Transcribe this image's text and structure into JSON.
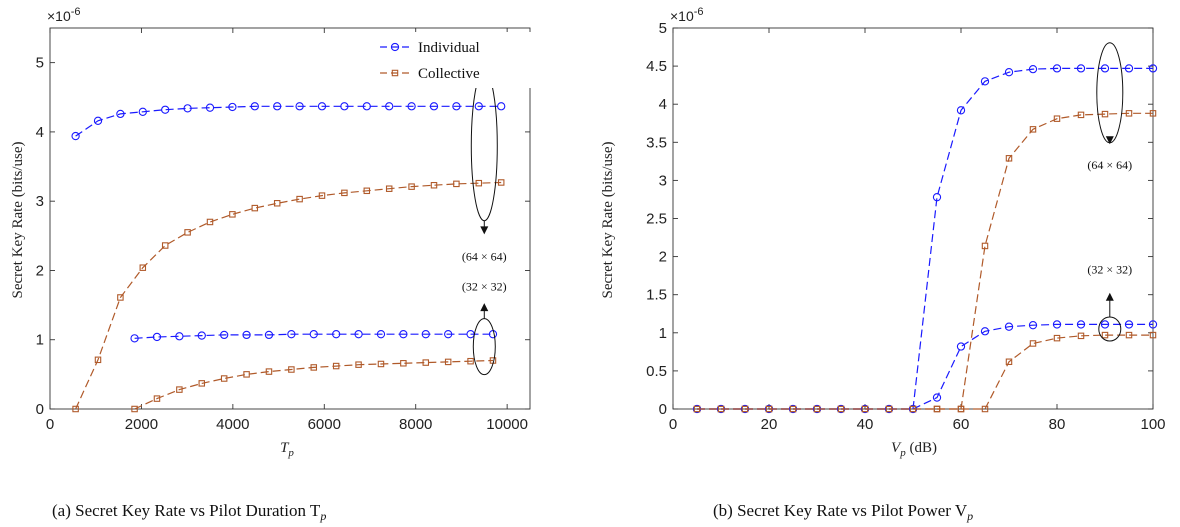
{
  "chart_data": [
    {
      "type": "line",
      "caption": "(a) Secret Key Rate vs Pilot Duration T",
      "caption_sub": "p",
      "xlabel": "T",
      "xlabel_sub": "p",
      "ylabel": "Secret Key Rate (bits/use)",
      "exponent_label": "×10",
      "exponent_power": "-6",
      "xlim": [
        0,
        10500
      ],
      "ylim": [
        0,
        5.5
      ],
      "xticks": [
        0,
        2000,
        4000,
        6000,
        8000,
        10000
      ],
      "yticks": [
        0,
        1,
        2,
        3,
        4,
        5
      ],
      "legend_position": "top-right",
      "legend": [
        {
          "name": "Individual",
          "color": "#1a1aff",
          "marker": "circle"
        },
        {
          "name": "Collective",
          "color": "#b05a2a",
          "marker": "square"
        }
      ],
      "annotations": [
        {
          "text": "(64 × 64)",
          "x": 9500,
          "y": 2.0
        },
        {
          "text": "(32 × 32)",
          "x": 9500,
          "y": 1.65
        }
      ],
      "series": [
        {
          "name": "Individual",
          "group": "64x64",
          "color": "#1a1aff",
          "marker": "circle",
          "x": [
            560,
            1050,
            1540,
            2030,
            2520,
            3010,
            3500,
            3990,
            4480,
            4970,
            5460,
            5950,
            6440,
            6930,
            7420,
            7910,
            8400,
            8890,
            9380,
            9870
          ],
          "y": [
            3.94,
            4.16,
            4.26,
            4.29,
            4.32,
            4.34,
            4.35,
            4.36,
            4.37,
            4.37,
            4.37,
            4.37,
            4.37,
            4.37,
            4.37,
            4.37,
            4.37,
            4.37,
            4.37,
            4.37
          ]
        },
        {
          "name": "Collective",
          "group": "64x64",
          "color": "#b05a2a",
          "marker": "square",
          "x": [
            560,
            1050,
            1540,
            2030,
            2520,
            3010,
            3500,
            3990,
            4480,
            4970,
            5460,
            5950,
            6440,
            6930,
            7420,
            7910,
            8400,
            8890,
            9380,
            9870
          ],
          "y": [
            0.0,
            0.71,
            1.61,
            2.04,
            2.36,
            2.55,
            2.7,
            2.81,
            2.9,
            2.97,
            3.03,
            3.08,
            3.12,
            3.15,
            3.18,
            3.21,
            3.23,
            3.25,
            3.26,
            3.27
          ]
        },
        {
          "name": "Individual",
          "group": "32x32",
          "color": "#1a1aff",
          "marker": "circle",
          "x": [
            1850,
            2340,
            2830,
            3320,
            3810,
            4300,
            4790,
            5280,
            5770,
            6260,
            6750,
            7240,
            7730,
            8220,
            8710,
            9200,
            9690
          ],
          "y": [
            1.02,
            1.04,
            1.05,
            1.06,
            1.07,
            1.07,
            1.07,
            1.08,
            1.08,
            1.08,
            1.08,
            1.08,
            1.08,
            1.08,
            1.08,
            1.08,
            1.08
          ]
        },
        {
          "name": "Collective",
          "group": "32x32",
          "color": "#b05a2a",
          "marker": "square",
          "x": [
            1850,
            2340,
            2830,
            3320,
            3810,
            4300,
            4790,
            5280,
            5770,
            6260,
            6750,
            7240,
            7730,
            8220,
            8710,
            9200,
            9690
          ],
          "y": [
            0.0,
            0.15,
            0.28,
            0.37,
            0.44,
            0.5,
            0.54,
            0.57,
            0.6,
            0.62,
            0.64,
            0.65,
            0.66,
            0.67,
            0.68,
            0.69,
            0.7
          ]
        }
      ]
    },
    {
      "type": "line",
      "caption": "(b) Secret Key Rate vs Pilot Power V",
      "caption_sub": "p",
      "xlabel": "V",
      "xlabel_sub": "p",
      "xlabel_unit": " (dB)",
      "ylabel": "Secret Key Rate (bits/use)",
      "exponent_label": "×10",
      "exponent_power": "-6",
      "xlim": [
        0,
        100
      ],
      "ylim": [
        0,
        5
      ],
      "xticks": [
        0,
        20,
        40,
        60,
        80,
        100
      ],
      "yticks": [
        0,
        0.5,
        1,
        1.5,
        2,
        2.5,
        3,
        3.5,
        4,
        4.5,
        5
      ],
      "annotations": [
        {
          "text": "(64 × 64)",
          "x": 91,
          "y": 3.3
        },
        {
          "text": "(32 × 32)",
          "x": 91,
          "y": 1.75
        }
      ],
      "series": [
        {
          "name": "Individual",
          "group": "64x64",
          "color": "#1a1aff",
          "marker": "circle",
          "x": [
            5,
            10,
            15,
            20,
            25,
            30,
            35,
            40,
            45,
            50,
            55,
            60,
            65,
            70,
            75,
            80,
            85,
            90,
            95,
            100
          ],
          "y": [
            0,
            0,
            0,
            0,
            0,
            0,
            0,
            0,
            0,
            0,
            2.78,
            3.92,
            4.3,
            4.42,
            4.46,
            4.47,
            4.47,
            4.47,
            4.47,
            4.47
          ]
        },
        {
          "name": "Collective",
          "group": "64x64",
          "color": "#b05a2a",
          "marker": "square",
          "x": [
            5,
            10,
            15,
            20,
            25,
            30,
            35,
            40,
            45,
            50,
            55,
            60,
            65,
            70,
            75,
            80,
            85,
            90,
            95,
            100
          ],
          "y": [
            0,
            0,
            0,
            0,
            0,
            0,
            0,
            0,
            0,
            0,
            0,
            0,
            2.14,
            3.29,
            3.67,
            3.81,
            3.86,
            3.87,
            3.88,
            3.88
          ]
        },
        {
          "name": "Individual",
          "group": "32x32",
          "color": "#1a1aff",
          "marker": "circle",
          "x": [
            5,
            10,
            15,
            20,
            25,
            30,
            35,
            40,
            45,
            50,
            55,
            60,
            65,
            70,
            75,
            80,
            85,
            90,
            95,
            100
          ],
          "y": [
            0,
            0,
            0,
            0,
            0,
            0,
            0,
            0,
            0,
            0,
            0.15,
            0.82,
            1.02,
            1.08,
            1.1,
            1.11,
            1.11,
            1.11,
            1.11,
            1.11
          ]
        },
        {
          "name": "Collective",
          "group": "32x32",
          "color": "#b05a2a",
          "marker": "square",
          "x": [
            5,
            10,
            15,
            20,
            25,
            30,
            35,
            40,
            45,
            50,
            55,
            60,
            65,
            70,
            75,
            80,
            85,
            90,
            95,
            100
          ],
          "y": [
            0,
            0,
            0,
            0,
            0,
            0,
            0,
            0,
            0,
            0,
            0,
            0,
            0,
            0.62,
            0.86,
            0.93,
            0.96,
            0.97,
            0.97,
            0.97
          ]
        }
      ]
    }
  ]
}
